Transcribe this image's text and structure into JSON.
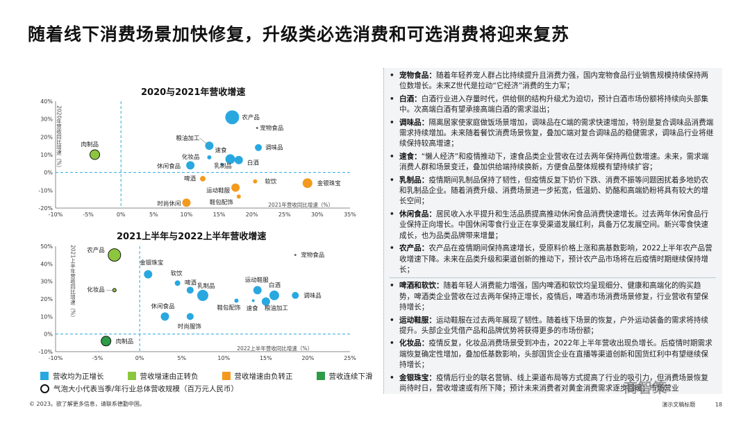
{
  "title": "随着线下消费场景加快修复，升级类必选消费和可选消费将迎来复苏",
  "colors": {
    "blue": "#29a8e0",
    "green": "#8cc63f",
    "orange": "#f39a1e",
    "dgreen": "#2e9b47"
  },
  "chart_data": [
    {
      "type": "scatter",
      "title": "2020与2021年营收增速",
      "xlabel": "2021年营收同比增速（%）",
      "ylabel": "2020年营收同比增速（%）",
      "xlim": [
        -10,
        35
      ],
      "ylim": [
        -20,
        40
      ],
      "x_ticks": [
        "-10%",
        "-5%",
        "0%",
        "5%",
        "10%",
        "15%",
        "20%",
        "25%",
        "30%",
        "35%"
      ],
      "y_ticks": [
        "40%",
        "30%",
        "20%",
        "10%",
        "0%",
        "-10%",
        "-20%"
      ],
      "points": [
        {
          "label": "肉制品",
          "x": -4,
          "y": 10,
          "cat": "green",
          "r": 7
        },
        {
          "label": "农产品",
          "x": 17,
          "y": 31,
          "cat": "blue",
          "r": 10
        },
        {
          "label": "宠物食品",
          "x": 20.8,
          "y": 25,
          "cat": "blue",
          "r": 1.5
        },
        {
          "label": "粮油加工",
          "x": 13.5,
          "y": 15,
          "cat": "blue",
          "r": 6
        },
        {
          "label": "调味品",
          "x": 21,
          "y": 14,
          "cat": "blue",
          "r": 5
        },
        {
          "label": "化妆品",
          "x": 13.5,
          "y": 8.5,
          "cat": "blue",
          "r": 3
        },
        {
          "label": "速食",
          "x": 16.7,
          "y": 7.5,
          "cat": "blue",
          "r": 7
        },
        {
          "label": "白酒",
          "x": 18,
          "y": 7,
          "cat": "blue",
          "r": 6
        },
        {
          "label": "休闲食品",
          "x": 10.6,
          "y": 4,
          "cat": "blue",
          "r": 6
        },
        {
          "label": "乳制品",
          "x": 15.5,
          "y": 4.5,
          "cat": "blue",
          "r": 2
        },
        {
          "label": "啤酒",
          "x": 12.5,
          "y": -3.5,
          "cat": "orange",
          "r": 4
        },
        {
          "label": "软饮",
          "x": 20.5,
          "y": -5,
          "cat": "orange",
          "r": 3
        },
        {
          "label": "金银珠宝",
          "x": 28.5,
          "y": -6,
          "cat": "orange",
          "r": 7
        },
        {
          "label": "运动鞋服",
          "x": 17.5,
          "y": -8.5,
          "cat": "orange",
          "r": 6
        },
        {
          "label": "鞋包配饰",
          "x": 18,
          "y": -13.5,
          "cat": "orange",
          "r": 3
        },
        {
          "label": "时尚休闲",
          "x": 10,
          "y": -17,
          "cat": "orange",
          "r": 6
        }
      ]
    },
    {
      "type": "scatter",
      "title": "2021上半年与2022上半年营收增速",
      "xlabel": "2022上半年营收同比增速（%）",
      "ylabel": "2021上半年营收同比增速（%）",
      "xlim": [
        -10,
        25
      ],
      "ylim": [
        -10,
        50
      ],
      "x_ticks": [
        "-10%",
        "-5%",
        "0%",
        "5%",
        "10%",
        "15%",
        "20%",
        "25%"
      ],
      "y_ticks": [
        "50%",
        "40%",
        "30%",
        "20%",
        "10%",
        "0%",
        "-10%"
      ],
      "points": [
        {
          "label": "农产品",
          "x": -3,
          "y": 45,
          "cat": "green",
          "r": 9
        },
        {
          "label": "宠物食品",
          "x": 18.5,
          "y": 45,
          "cat": "blue",
          "r": 1.5
        },
        {
          "label": "化妆品",
          "x": -3,
          "y": 25,
          "cat": "green",
          "r": 2.5
        },
        {
          "label": "金银珠宝",
          "x": 1,
          "y": 34,
          "cat": "blue",
          "r": 6
        },
        {
          "label": "软饮",
          "x": 4.5,
          "y": 29,
          "cat": "blue",
          "r": 4
        },
        {
          "label": "啤酒",
          "x": 6,
          "y": 25,
          "cat": "blue",
          "r": 5
        },
        {
          "label": "乳制品",
          "x": 7.5,
          "y": 22,
          "cat": "blue",
          "r": 8
        },
        {
          "label": "运动鞋服",
          "x": 14,
          "y": 25,
          "cat": "blue",
          "r": 6
        },
        {
          "label": "白酒",
          "x": 16,
          "y": 22,
          "cat": "blue",
          "r": 7
        },
        {
          "label": "调味品",
          "x": 18.5,
          "y": 22,
          "cat": "blue",
          "r": 5
        },
        {
          "label": "鞋包配饰",
          "x": 11.5,
          "y": 19,
          "cat": "blue",
          "r": 3
        },
        {
          "label": "速食",
          "x": 13.5,
          "y": 19,
          "cat": "blue",
          "r": 2
        },
        {
          "label": "粮油加工",
          "x": 15,
          "y": 18.5,
          "cat": "blue",
          "r": 6
        },
        {
          "label": "休闲食品",
          "x": 3,
          "y": 10,
          "cat": "blue",
          "r": 6
        },
        {
          "label": "时尚服饰",
          "x": 6,
          "y": 10,
          "cat": "blue",
          "r": 5
        },
        {
          "label": "肉制品",
          "x": -4,
          "y": -4,
          "cat": "dgreen",
          "r": 7
        }
      ]
    }
  ],
  "legend": {
    "items": [
      {
        "label": "营收均为正增长",
        "color": "#29a8e0"
      },
      {
        "label": "营收增速由正转负",
        "color": "#8cc63f"
      },
      {
        "label": "营收增速由负转正",
        "color": "#f39a1e"
      },
      {
        "label": "营收连续下滑",
        "color": "#2e9b47"
      }
    ],
    "size_note": "气泡大小代表当季/年行业总体营收规模（百万元人民币）"
  },
  "panel": [
    {
      "head": "宠物食品：",
      "text": "随着年轻养宠人群占比持续提升且消费力强，国内宠物食品行业销售规模持续保持两位数增长。未来Z世代是拉动“它经济”消费的生力军；"
    },
    {
      "head": "白酒：",
      "text": "白酒行业进入存量时代，供给侧的结构升级尤为迫切，预计白酒市场份额将持续向头部集中。次高端白酒有望承接高端白酒的需求溢出；"
    },
    {
      "head": "调味品：",
      "text": "隔离居家使家庭做饭场景增加，调味品在C端的需求快速增加，特别是复合调味品消费端需求持续增加。未来随着餐饮消费场景恢复，叠加C端对复合调味品的稳健需求，调味品行业将继续保持较高增速；"
    },
    {
      "head": "速食：",
      "text": "“懒人经济”和疫情推动下，速食品类企业营收在过去两年保持两位数增速。未来，需求端消费人群和场景变迁，叠加供给端持续换新，方便食品整体规模有望持续扩容；"
    },
    {
      "head": "乳制品：",
      "text": "疫情期间乳制品保持了韧性，但疫情反复下奶价下跌、消费不振等问题困扰着多地奶农和乳制品企业。随着消费升级、消费场景进一步拓宽，低温奶、奶酪和高端奶粉将具有较大的增长空间；"
    },
    {
      "head": "休闲食品：",
      "text": "居民收入水平提升和生活品质提高推动休闲食品消费快速增长。过去两年休闲食品行业保持正向增长。中国休闲零食行业正在享受渠道发展红利，具备万亿发展空间。新兴零食快速成长，也为品类品牌带来增量；"
    },
    {
      "head": "农产品：",
      "text": "农产品在疫情期间保持高速增长，受原料价格上涨和高基数影响，2022上半年农产品营收增速下降。未来在品类升级和渠道创新的推动下，预计农产品市场将在后疫情时期继续保持增长；"
    },
    {
      "head": "啤酒和软饮：",
      "text": "随着年轻人消费能力增强，国内啤酒和软饮均呈现细分、健康和高端化的购买趋势，啤酒类企业营收在过去两年保持正增长，疫情后，啤酒市场消费场景修复，行业营收有望保持增长；"
    },
    {
      "head": "运动鞋服：",
      "text": "运动鞋服在过去两年展现了韧性。随着线下场景的恢复，户外运动装备的需求将持续提升。头部企业凭借产品和品牌优势将获得更多的市场份额；"
    },
    {
      "head": "化妆品：",
      "text": "疫情反复，化妆品消费场景受到冲击，2022年上半年营收出现负增长。后疫情时期需求端恢复确定性增加，叠加低基数影响，头部国货企业在直播等渠道创新和国货红利中有望继续保持增长；"
    },
    {
      "head": "金银珠宝：",
      "text": "疫情后行业的联名营销、线上渠道布局等方式提高了行业的吸引力，但消费场景恢复尚待时日，营收增速或有所下降；预计未来消费者对黄金消费需求逐步回暖；市场营业"
    }
  ],
  "copyright": "© 2023。欲了解更多信息，请联系德勤中国。",
  "footer": {
    "slide_title": "演示文稿标题",
    "page": "18"
  },
  "watermark": "商智策"
}
